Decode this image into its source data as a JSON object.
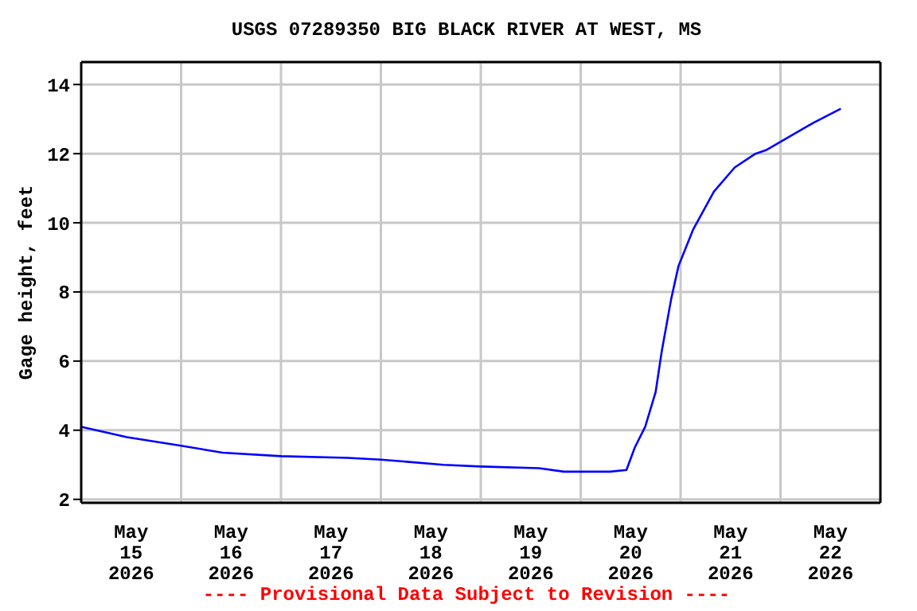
{
  "chart_data": {
    "type": "line",
    "title": "USGS 07289350 BIG BLACK RIVER AT WEST, MS",
    "ylabel": "Gage height, feet",
    "annotations": [
      "---- Provisional Data Subject to Revision ----"
    ],
    "x": [
      "2026-05-15T00:00",
      "2026-05-15T11:00",
      "2026-05-16T00:00",
      "2026-05-16T10:00",
      "2026-05-17T00:00",
      "2026-05-17T16:00",
      "2026-05-18T00:00",
      "2026-05-18T15:00",
      "2026-05-19T00:00",
      "2026-05-19T14:00",
      "2026-05-19T20:00",
      "2026-05-20T07:00",
      "2026-05-20T11:00",
      "2026-05-20T13:00",
      "2026-05-20T15:30",
      "2026-05-20T18:00",
      "2026-05-20T19:30",
      "2026-05-20T21:45",
      "2026-05-20T23:30",
      "2026-05-21T03:00",
      "2026-05-21T08:00",
      "2026-05-21T13:00",
      "2026-05-21T18:00",
      "2026-05-21T20:30",
      "2026-05-22T08:00",
      "2026-05-22T14:30"
    ],
    "series": [
      {
        "color": "#0000ff",
        "values": [
          4.1,
          3.8,
          3.55,
          3.35,
          3.25,
          3.2,
          3.15,
          3.0,
          2.95,
          2.9,
          2.8,
          2.8,
          2.85,
          3.5,
          4.1,
          5.1,
          6.3,
          7.8,
          8.75,
          9.8,
          10.9,
          11.6,
          12.0,
          12.1,
          12.9,
          13.3
        ]
      }
    ],
    "xlim": [
      "2026-05-15T00:00",
      "2026-05-23T00:00"
    ],
    "xticks": [
      {
        "value": "2026-05-15T12:00",
        "label": "May\n15\n2026"
      },
      {
        "value": "2026-05-16T00:00",
        "label": null
      },
      {
        "value": "2026-05-16T12:00",
        "label": "May\n16\n2026"
      },
      {
        "value": "2026-05-17T00:00",
        "label": null
      },
      {
        "value": "2026-05-17T12:00",
        "label": "May\n17\n2026"
      },
      {
        "value": "2026-05-18T00:00",
        "label": null
      },
      {
        "value": "2026-05-18T12:00",
        "label": "May\n18\n2026"
      },
      {
        "value": "2026-05-19T00:00",
        "label": null
      },
      {
        "value": "2026-05-19T12:00",
        "label": "May\n19\n2026"
      },
      {
        "value": "2026-05-20T00:00",
        "label": null
      },
      {
        "value": "2026-05-20T12:00",
        "label": "May\n20\n2026"
      },
      {
        "value": "2026-05-21T00:00",
        "label": null
      },
      {
        "value": "2026-05-21T12:00",
        "label": "May\n21\n2026"
      },
      {
        "value": "2026-05-22T00:00",
        "label": null
      },
      {
        "value": "2026-05-22T12:00",
        "label": "May\n22\n2026"
      }
    ],
    "ylim": [
      1.9,
      14.65
    ],
    "yticks": [
      2,
      4,
      6,
      8,
      10,
      12,
      14
    ],
    "grid": true,
    "marker": "none",
    "line_style": "solid"
  }
}
